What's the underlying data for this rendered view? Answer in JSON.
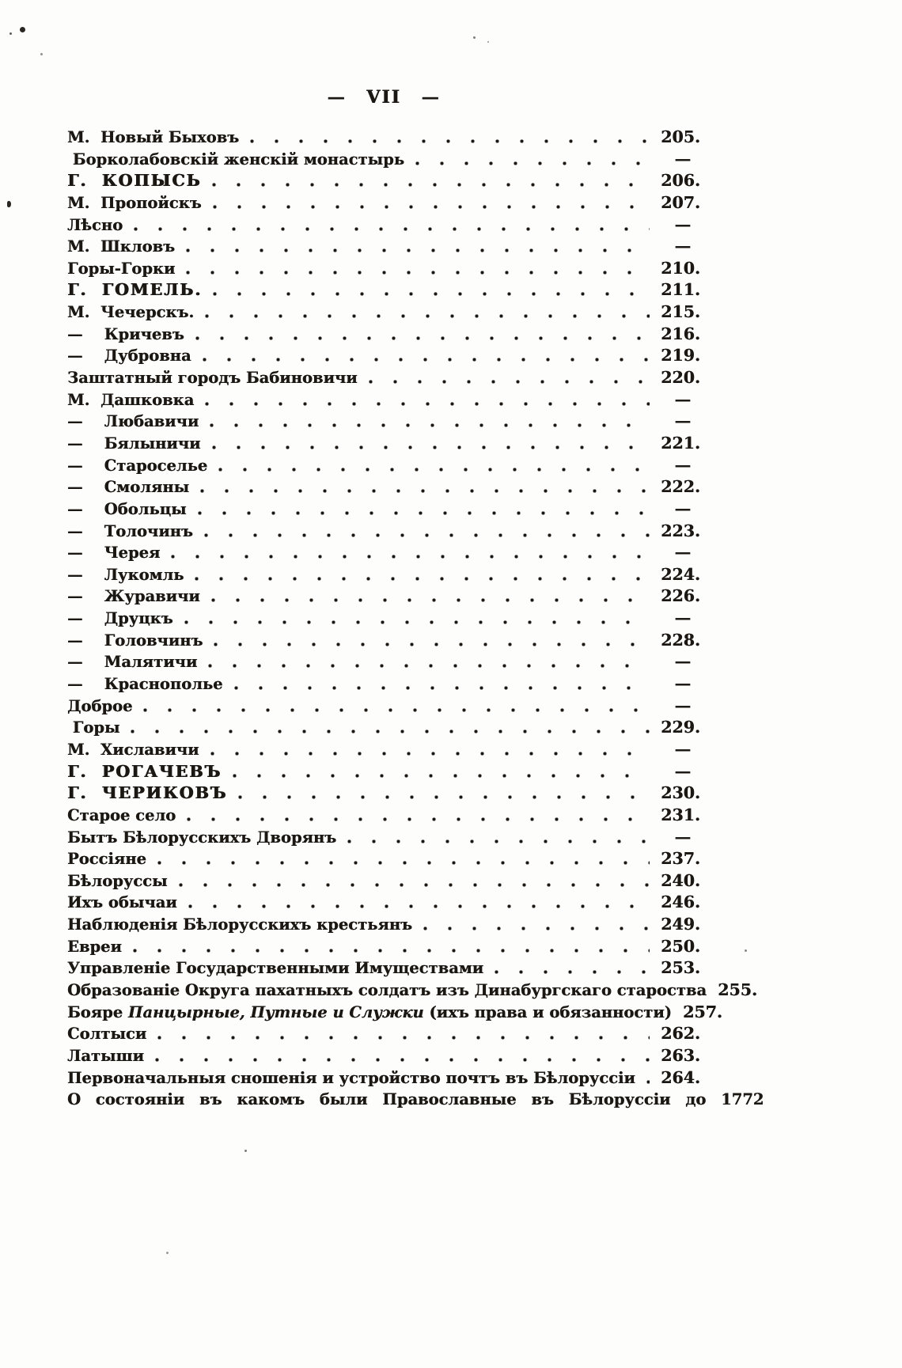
{
  "page": {
    "header": "— VII —",
    "colors": {
      "paper": "#fdfdfb",
      "ink": "#1b1713"
    }
  },
  "toc": {
    "entries": [
      {
        "text": "М.  Новый Быховъ",
        "page": "205."
      },
      {
        "text": " Борколабовскій женскій монастырь",
        "page": "—"
      },
      {
        "text": "Г.  КОПЫСЬ",
        "page": "206.",
        "style": "caps"
      },
      {
        "text": "М.  Пропойскъ",
        "page": "207."
      },
      {
        "text": "Лѣсно",
        "page": "—"
      },
      {
        "text": "М.  Шкловъ",
        "page": "—"
      },
      {
        "text": "Горы-Горки",
        "page": "210."
      },
      {
        "text": "Г.  ГОМЕЛЬ.",
        "page": "211.",
        "style": "caps"
      },
      {
        "text": "М.  Чечерскъ.",
        "page": "215."
      },
      {
        "text": "—    Кричевъ",
        "page": "216."
      },
      {
        "text": "—    Дубровна",
        "page": "219."
      },
      {
        "text": "Заштатный городъ Бабиновичи",
        "page": "220."
      },
      {
        "text": "М.  Дашковка",
        "page": "—"
      },
      {
        "text": "—    Любавичи",
        "page": "—"
      },
      {
        "text": "—    Бялыничи",
        "page": "221."
      },
      {
        "text": "—    Староселье",
        "page": "—"
      },
      {
        "text": "—    Смоляны",
        "page": "222."
      },
      {
        "text": "—    Обольцы",
        "page": "—"
      },
      {
        "text": "—    Толочинъ",
        "page": "223."
      },
      {
        "text": "—    Черея",
        "page": "—"
      },
      {
        "text": "—    Лукомль",
        "page": "224."
      },
      {
        "text": "—    Журавичи",
        "page": "226."
      },
      {
        "text": "—    Друцкъ",
        "page": "—"
      },
      {
        "text": "—    Головчинъ",
        "page": "228."
      },
      {
        "text": "—    Малятичи",
        "page": "—"
      },
      {
        "text": "—    Краснополье",
        "page": "—"
      },
      {
        "text": "Доброе",
        "page": "—"
      },
      {
        "text": " Горы",
        "page": "229."
      },
      {
        "text": "М.  Хиславичи",
        "page": "—"
      },
      {
        "text": "Г.  РОГАЧЕВЪ",
        "page": "—",
        "style": "caps"
      },
      {
        "text": "Г.  ЧЕРИКОВЪ",
        "page": "230.",
        "style": "caps"
      },
      {
        "text": "Старое село",
        "page": "231."
      },
      {
        "text": "Бытъ Бѣлорусскихъ Дворянъ",
        "page": "—"
      },
      {
        "text": "Россіяне",
        "page": "237."
      },
      {
        "text": "Бѣлоруссы",
        "page": "240."
      },
      {
        "text": "Ихъ обычаи",
        "page": "246."
      },
      {
        "text": "Наблюденія Бѣлорусскихъ крестьянъ",
        "page": "249."
      },
      {
        "text": "Евреи",
        "page": "250."
      },
      {
        "text": "Управленіе Государственными Имуществами",
        "page": "253."
      },
      {
        "text": "Образованіе Округа пахатныхъ солдатъ изъ Динабургскаго староства",
        "page": "255.",
        "leader": false
      },
      {
        "text": "Бояре ",
        "italic": "Панцырные, Путные и Служки",
        "text2": " (ихъ права и обязанности)",
        "page": "257."
      },
      {
        "text": "Солтыси",
        "page": "262."
      },
      {
        "text": "Латыши",
        "page": "263."
      },
      {
        "text": "Первоначальныя сношенія и устройство почтъ въ Бѣлоруссіи",
        "page": "264."
      },
      {
        "text": "О состояніи въ какомъ были Православные въ Бѣлоруссіи до 1772",
        "page": "",
        "leader": false,
        "style": "spread"
      }
    ]
  }
}
